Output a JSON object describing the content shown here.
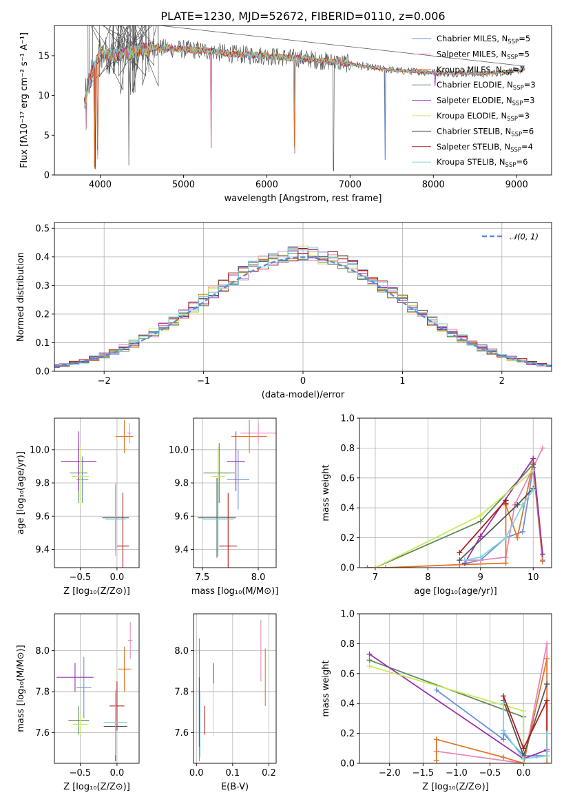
{
  "title": "PLATE=1230, MJD=52672, FIBERID=0110, z=0.006",
  "models": [
    {
      "name": "Chabrier MILES",
      "nssp": "5",
      "color": "#6b8fd6"
    },
    {
      "name": "Salpeter MILES",
      "nssp": "5",
      "color": "#e887b8"
    },
    {
      "name": "Kroupa MILES",
      "nssp": "7",
      "color": "#e0752a"
    },
    {
      "name": "Chabrier ELODIE",
      "nssp": "3",
      "color": "#5e8a5a"
    },
    {
      "name": "Salpeter ELODIE",
      "nssp": "3",
      "color": "#9a2fb0"
    },
    {
      "name": "Kroupa ELODIE",
      "nssp": "3",
      "color": "#c7ea5a"
    },
    {
      "name": "Chabrier STELIB",
      "nssp": "6",
      "color": "#555555"
    },
    {
      "name": "Salpeter STELIB",
      "nssp": "4",
      "color": "#b01a1a"
    },
    {
      "name": "Kroupa STELIB",
      "nssp": "6",
      "color": "#7dd6dc"
    }
  ],
  "chart_data": [
    {
      "id": "spectrum",
      "type": "line",
      "xlabel": "wavelength [Angstrom, rest frame]",
      "ylabel": "Flux [fλ10⁻¹⁷ erg cm⁻² s⁻¹ A⁻¹]",
      "xlim": [
        3450,
        9420
      ],
      "ylim": [
        0,
        18.8
      ],
      "xticks": [
        4000,
        5000,
        6000,
        7000,
        8000,
        9000
      ],
      "yticks": [
        0,
        5,
        10,
        15
      ],
      "grid": false,
      "legend": "top-right",
      "data_x": [
        3810,
        3900,
        4000,
        4100,
        4300,
        4500,
        4700,
        5000,
        5300,
        5600,
        6000,
        6300,
        6500,
        6800,
        7000,
        7200,
        7400,
        7600,
        7800,
        8000,
        8200,
        8400,
        8600,
        8800,
        9000,
        9100
      ],
      "data_y": [
        9,
        13,
        15.5,
        15,
        15.2,
        15.8,
        16,
        15.8,
        15.6,
        15.2,
        15,
        14.7,
        14.6,
        14.2,
        14,
        13.6,
        13.3,
        13.1,
        13,
        12.9,
        12.8,
        12.8,
        12.7,
        12.9,
        13.1,
        13.3
      ],
      "absorption_lines": [
        {
          "x": 3830,
          "y": 4.5
        },
        {
          "x": 3890,
          "y": 2
        },
        {
          "x": 3935,
          "y": 0.5
        },
        {
          "x": 3970,
          "y": 2
        },
        {
          "x": 4340,
          "y": 0.5
        },
        {
          "x": 5330,
          "y": 3
        },
        {
          "x": 6330,
          "y": 2
        },
        {
          "x": 6800,
          "y": 0
        },
        {
          "x": 7420,
          "y": 1
        },
        {
          "x": 7800,
          "y": 12.5
        },
        {
          "x": 8020,
          "y": 10
        },
        {
          "x": 8180,
          "y": 11
        }
      ]
    },
    {
      "id": "residuals",
      "type": "histogram",
      "xlabel": "(data-model)/error",
      "ylabel": "Normed distribution",
      "xlim": [
        -2.5,
        2.5
      ],
      "ylim": [
        0,
        0.52
      ],
      "xticks": [
        -2,
        -1,
        0,
        1,
        2
      ],
      "yticks": [
        0,
        0.1,
        0.2,
        0.3,
        0.4,
        0.5
      ],
      "grid": true,
      "legend": "top-right",
      "gaussian_label": "𝒩(0, 1)",
      "gaussian_color": "#5b8bd8",
      "bin_width": 0.1
    },
    {
      "id": "age_vs_Z",
      "type": "errorbar",
      "xlabel": "Z [log₁₀(Z/Z⊙)]",
      "ylabel": "age  [log₁₀(age/yr)]",
      "xlim": [
        -0.85,
        0.3
      ],
      "ylim": [
        9.29,
        10.19
      ],
      "xticks": [
        -0.5,
        0.0
      ],
      "yticks": [
        9.4,
        9.6,
        9.8,
        10.0
      ],
      "grid": true,
      "points": [
        {
          "model": 0,
          "x": -0.47,
          "xerr": 0.08,
          "y": 9.82,
          "yerr": 0.14
        },
        {
          "model": 1,
          "x": 0.17,
          "xerr": 0.03,
          "y": 10.1,
          "yerr": 0.06
        },
        {
          "model": 2,
          "x": 0.1,
          "xerr": 0.12,
          "y": 10.08,
          "yerr": 0.1
        },
        {
          "model": 3,
          "x": -0.52,
          "xerr": 0.12,
          "y": 9.86,
          "yerr": 0.18
        },
        {
          "model": 4,
          "x": -0.52,
          "xerr": 0.24,
          "y": 9.93,
          "yerr": 0.18
        },
        {
          "model": 5,
          "x": -0.5,
          "xerr": 0.12,
          "y": 9.84,
          "yerr": 0.18
        },
        {
          "model": 6,
          "x": -0.02,
          "xerr": 0.18,
          "y": 9.59,
          "yerr": 0.2
        },
        {
          "model": 7,
          "x": 0.08,
          "xerr": 0.08,
          "y": 9.42,
          "yerr": 0.32
        },
        {
          "model": 8,
          "x": -0.02,
          "xerr": 0.14,
          "y": 9.58,
          "yerr": 0.22
        }
      ]
    },
    {
      "id": "age_vs_mass",
      "type": "errorbar",
      "xlabel": "mass [log₁₀(M/M⊙)]",
      "ylabel": "",
      "xlim": [
        7.42,
        8.16
      ],
      "ylim": [
        9.29,
        10.19
      ],
      "xticks": [
        7.5,
        8.0
      ],
      "yticks": [
        9.4,
        9.6,
        9.8,
        10.0
      ],
      "grid": true,
      "points": [
        {
          "model": 0,
          "x": 7.82,
          "xerr": 0.1,
          "y": 9.82,
          "yerr": 0.18
        },
        {
          "model": 1,
          "x": 8.0,
          "xerr": 0.16,
          "y": 10.1,
          "yerr": 0.06
        },
        {
          "model": 2,
          "x": 7.92,
          "xerr": 0.16,
          "y": 10.08,
          "yerr": 0.1
        },
        {
          "model": 3,
          "x": 7.65,
          "xerr": 0.14,
          "y": 9.86,
          "yerr": 0.18
        },
        {
          "model": 4,
          "x": 7.8,
          "xerr": 0.08,
          "y": 9.93,
          "yerr": 0.18
        },
        {
          "model": 5,
          "x": 7.64,
          "xerr": 0.06,
          "y": 9.84,
          "yerr": 0.18
        },
        {
          "model": 6,
          "x": 7.63,
          "xerr": 0.17,
          "y": 9.59,
          "yerr": 0.24
        },
        {
          "model": 7,
          "x": 7.73,
          "xerr": 0.08,
          "y": 9.42,
          "yerr": 0.32
        },
        {
          "model": 8,
          "x": 7.64,
          "xerr": 0.14,
          "y": 9.58,
          "yerr": 0.22
        }
      ]
    },
    {
      "id": "weight_vs_age",
      "type": "line",
      "xlabel": "age  [log₁₀(age/yr)]",
      "ylabel": "mass weight",
      "xlim": [
        6.7,
        10.35
      ],
      "ylim": [
        0,
        1.0
      ],
      "xticks": [
        7,
        8,
        9,
        10
      ],
      "yticks": [
        0.0,
        0.2,
        0.4,
        0.6,
        0.8,
        1.0
      ],
      "grid": true,
      "series": [
        {
          "model": 0,
          "x": [
            8.6,
            9.0,
            9.48,
            9.8,
            10.0,
            10.18
          ],
          "y": [
            0.02,
            0.05,
            0.2,
            0.24,
            0.67,
            0.05
          ]
        },
        {
          "model": 1,
          "x": [
            8.7,
            9.0,
            9.48,
            9.65,
            10.18
          ],
          "y": [
            0.05,
            0.05,
            0.07,
            0.42,
            0.8
          ]
        },
        {
          "model": 2,
          "x": [
            6.85,
            7.2,
            8.6,
            9.48,
            9.48,
            9.7,
            10.0,
            10.18
          ],
          "y": [
            0.0,
            0.0,
            0.02,
            0.03,
            0.42,
            0.2,
            0.7,
            0.04
          ]
        },
        {
          "model": 3,
          "x": [
            7.0,
            9.0,
            10.0
          ],
          "y": [
            0.0,
            0.31,
            0.69
          ]
        },
        {
          "model": 4,
          "x": [
            8.7,
            9.0,
            10.0,
            10.18
          ],
          "y": [
            0.03,
            0.21,
            0.73,
            0.09
          ]
        },
        {
          "model": 5,
          "x": [
            7.0,
            9.0,
            10.0
          ],
          "y": [
            0.0,
            0.35,
            0.65
          ]
        },
        {
          "model": 6,
          "x": [
            8.6,
            9.7,
            10.0
          ],
          "y": [
            0.05,
            0.42,
            0.53
          ]
        },
        {
          "model": 7,
          "x": [
            8.6,
            9.48,
            9.48
          ],
          "y": [
            0.1,
            0.45,
            0.43
          ]
        },
        {
          "model": 8,
          "x": [
            8.7,
            9.0,
            9.48,
            9.8,
            10.0
          ],
          "y": [
            0.05,
            0.07,
            0.2,
            0.42,
            0.52
          ]
        }
      ]
    },
    {
      "id": "mass_vs_Z",
      "type": "errorbar",
      "xlabel": "Z [log₁₀(Z/Z⊙)]",
      "ylabel": "mass [log₁₀(M/M⊙)]",
      "xlim": [
        -0.85,
        0.3
      ],
      "ylim": [
        7.45,
        8.18
      ],
      "xticks": [
        -0.5,
        0.0
      ],
      "yticks": [
        7.6,
        7.8,
        8.0
      ],
      "grid": true,
      "points": [
        {
          "model": 0,
          "x": -0.45,
          "xerr": 0.1,
          "y": 7.82,
          "yerr": 0.15
        },
        {
          "model": 1,
          "x": 0.18,
          "xerr": 0.03,
          "y": 8.05,
          "yerr": 0.09
        },
        {
          "model": 2,
          "x": 0.1,
          "xerr": 0.09,
          "y": 7.91,
          "yerr": 0.11
        },
        {
          "model": 3,
          "x": -0.52,
          "xerr": 0.14,
          "y": 7.66,
          "yerr": 0.07
        },
        {
          "model": 4,
          "x": -0.57,
          "xerr": 0.25,
          "y": 7.87,
          "yerr": 0.07
        },
        {
          "model": 5,
          "x": -0.5,
          "xerr": 0.1,
          "y": 7.64,
          "yerr": 0.05
        },
        {
          "model": 6,
          "x": -0.02,
          "xerr": 0.16,
          "y": 7.63,
          "yerr": 0.17
        },
        {
          "model": 7,
          "x": 0.0,
          "xerr": 0.1,
          "y": 7.73,
          "yerr": 0.12
        },
        {
          "model": 8,
          "x": -0.02,
          "xerr": 0.16,
          "y": 7.65,
          "yerr": 0.16
        }
      ]
    },
    {
      "id": "mass_vs_EBV",
      "type": "errorbar",
      "xlabel": "E(B-V)",
      "ylabel": "",
      "xlim": [
        -0.008,
        0.22
      ],
      "ylim": [
        7.45,
        8.18
      ],
      "xticks": [
        0.0,
        0.1,
        0.2
      ],
      "yticks": [
        7.6,
        7.8,
        8.0
      ],
      "grid": true,
      "points": [
        {
          "model": 0,
          "x": 0.008,
          "xerr": 0,
          "y": 7.76,
          "yerr": 0.3
        },
        {
          "model": 1,
          "x": 0.178,
          "xerr": 0,
          "y": 8.0,
          "yerr": 0.15
        },
        {
          "model": 2,
          "x": 0.19,
          "xerr": 0,
          "y": 7.87,
          "yerr": 0.14
        },
        {
          "model": 3,
          "x": 0.01,
          "xerr": 0,
          "y": 7.64,
          "yerr": 0.15
        },
        {
          "model": 4,
          "x": 0.047,
          "xerr": 0,
          "y": 7.87,
          "yerr": 0.07
        },
        {
          "model": 5,
          "x": 0.047,
          "xerr": 0,
          "y": 7.71,
          "yerr": 0.13
        },
        {
          "model": 6,
          "x": 0.008,
          "xerr": 0,
          "y": 7.7,
          "yerr": 0.17
        },
        {
          "model": 7,
          "x": 0.023,
          "xerr": 0,
          "y": 7.66,
          "yerr": 0.07
        },
        {
          "model": 8,
          "x": 0.01,
          "xerr": 0,
          "y": 7.64,
          "yerr": 0.16
        }
      ]
    },
    {
      "id": "weight_vs_Z",
      "type": "line",
      "xlabel": "Z [log₁₀(Z/Z⊙)]",
      "ylabel": "mass weight",
      "xlim": [
        -2.45,
        0.42
      ],
      "ylim": [
        0,
        1.0
      ],
      "xticks": [
        -2.0,
        -1.5,
        -1.0,
        -0.5,
        0.0
      ],
      "yticks": [
        0.0,
        0.2,
        0.4,
        0.6,
        0.8,
        1.0
      ],
      "grid": true,
      "series": [
        {
          "model": 0,
          "x": [
            -1.3,
            -0.3,
            -0.3,
            0.0,
            0.2,
            0.35
          ],
          "y": [
            0.49,
            0.16,
            0.2,
            0.05,
            0.05,
            0.05
          ]
        },
        {
          "model": 1,
          "x": [
            -1.3,
            0.0,
            0.35,
            0.35
          ],
          "y": [
            0.08,
            0.0,
            0.8,
            0.08
          ]
        },
        {
          "model": 2,
          "x": [
            -1.3,
            -1.3,
            -0.3,
            0.0,
            0.35,
            0.35
          ],
          "y": [
            0.02,
            0.16,
            0.04,
            0.0,
            0.7,
            0.0
          ]
        },
        {
          "model": 3,
          "x": [
            -2.3,
            0.0,
            0.0
          ],
          "y": [
            0.69,
            0.31,
            0.0
          ]
        },
        {
          "model": 4,
          "x": [
            -2.3,
            0.0,
            0.35
          ],
          "y": [
            0.73,
            0.03,
            0.09
          ]
        },
        {
          "model": 5,
          "x": [
            -2.3,
            0.0,
            0.0
          ],
          "y": [
            0.65,
            0.35,
            0.0
          ]
        },
        {
          "model": 6,
          "x": [
            -0.3,
            0.0,
            0.35
          ],
          "y": [
            0.42,
            0.05,
            0.53
          ]
        },
        {
          "model": 7,
          "x": [
            -0.3,
            0.0,
            0.35,
            0.35
          ],
          "y": [
            0.45,
            0.1,
            0.42,
            0.05
          ]
        },
        {
          "model": 8,
          "x": [
            -0.3,
            -0.3,
            0.0,
            0.35,
            0.35
          ],
          "y": [
            0.4,
            0.22,
            0.03,
            0.05,
            0.2
          ]
        }
      ]
    }
  ]
}
